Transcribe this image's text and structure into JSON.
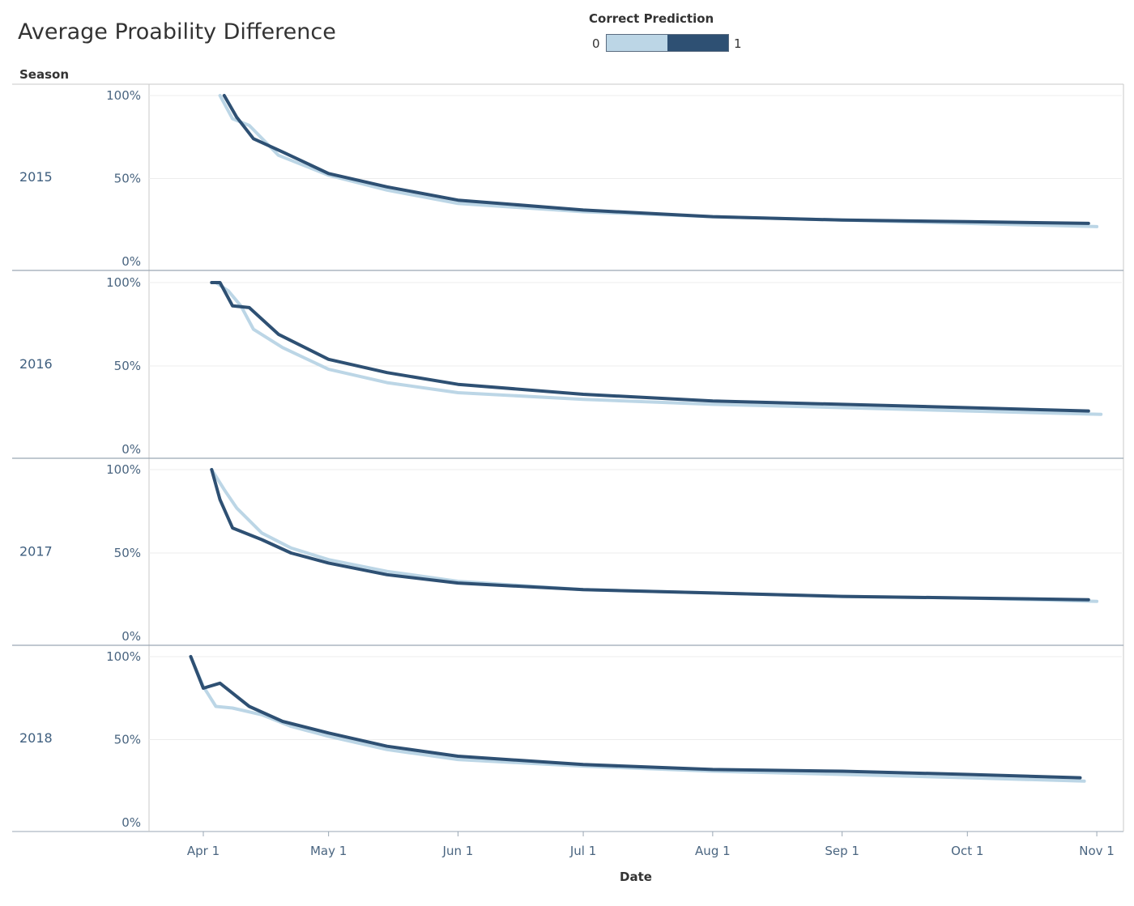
{
  "title": "Average Proability Difference",
  "legend": {
    "title": "Correct Prediction",
    "min_label": "0",
    "max_label": "1",
    "color_low": "#bcd6e6",
    "color_high": "#2e5073"
  },
  "row_header": "Season",
  "chart_data": {
    "type": "line",
    "title": "Average Proability Difference",
    "xlabel": "Date",
    "ylabel": "",
    "x_tick_labels": [
      "Apr 1",
      "May 1",
      "Jun 1",
      "Jul 1",
      "Aug 1",
      "Sep 1",
      "Oct 1",
      "Nov 1"
    ],
    "x_range": [
      "2018-03-19",
      "2018-11-07"
    ],
    "y_tick_labels": [
      "100%",
      "50%",
      "0%"
    ],
    "ylim": [
      0,
      1.0
    ],
    "grid": "horizontal",
    "legend_placement": "top-center",
    "series_colors": {
      "0": "#bcd6e6",
      "1": "#2e5073"
    },
    "panels": [
      {
        "season": "2015",
        "series": [
          {
            "name": "1",
            "points": [
              [
                "04-06",
                1.0
              ],
              [
                "04-09",
                0.87
              ],
              [
                "04-13",
                0.74
              ],
              [
                "04-20",
                0.66
              ],
              [
                "05-01",
                0.53
              ],
              [
                "05-15",
                0.45
              ],
              [
                "06-01",
                0.37
              ],
              [
                "07-01",
                0.31
              ],
              [
                "08-01",
                0.27
              ],
              [
                "09-01",
                0.25
              ],
              [
                "10-01",
                0.24
              ],
              [
                "10-30",
                0.23
              ]
            ]
          },
          {
            "name": "0",
            "points": [
              [
                "04-05",
                1.0
              ],
              [
                "04-08",
                0.86
              ],
              [
                "04-12",
                0.82
              ],
              [
                "04-19",
                0.64
              ],
              [
                "05-01",
                0.52
              ],
              [
                "05-15",
                0.43
              ],
              [
                "06-01",
                0.35
              ],
              [
                "07-01",
                0.3
              ],
              [
                "08-01",
                0.27
              ],
              [
                "09-01",
                0.25
              ],
              [
                "10-01",
                0.23
              ],
              [
                "11-01",
                0.21
              ]
            ]
          }
        ]
      },
      {
        "season": "2016",
        "series": [
          {
            "name": "1",
            "points": [
              [
                "04-03",
                1.0
              ],
              [
                "04-05",
                1.0
              ],
              [
                "04-08",
                0.86
              ],
              [
                "04-12",
                0.85
              ],
              [
                "04-19",
                0.69
              ],
              [
                "05-01",
                0.54
              ],
              [
                "05-15",
                0.46
              ],
              [
                "06-01",
                0.39
              ],
              [
                "07-01",
                0.33
              ],
              [
                "08-01",
                0.29
              ],
              [
                "09-01",
                0.27
              ],
              [
                "10-01",
                0.25
              ],
              [
                "10-30",
                0.23
              ]
            ]
          },
          {
            "name": "0",
            "points": [
              [
                "04-04",
                1.0
              ],
              [
                "04-07",
                0.95
              ],
              [
                "04-10",
                0.86
              ],
              [
                "04-13",
                0.72
              ],
              [
                "04-20",
                0.61
              ],
              [
                "05-01",
                0.48
              ],
              [
                "05-15",
                0.4
              ],
              [
                "06-01",
                0.34
              ],
              [
                "07-01",
                0.3
              ],
              [
                "08-01",
                0.27
              ],
              [
                "09-01",
                0.25
              ],
              [
                "10-01",
                0.23
              ],
              [
                "11-02",
                0.21
              ]
            ]
          }
        ]
      },
      {
        "season": "2017",
        "series": [
          {
            "name": "1",
            "points": [
              [
                "04-03",
                1.0
              ],
              [
                "04-05",
                0.82
              ],
              [
                "04-08",
                0.65
              ],
              [
                "04-15",
                0.58
              ],
              [
                "04-22",
                0.5
              ],
              [
                "05-01",
                0.44
              ],
              [
                "05-15",
                0.37
              ],
              [
                "06-01",
                0.32
              ],
              [
                "07-01",
                0.28
              ],
              [
                "08-01",
                0.26
              ],
              [
                "09-01",
                0.24
              ],
              [
                "10-01",
                0.23
              ],
              [
                "10-30",
                0.22
              ]
            ]
          },
          {
            "name": "0",
            "points": [
              [
                "04-03",
                1.0
              ],
              [
                "04-06",
                0.88
              ],
              [
                "04-09",
                0.77
              ],
              [
                "04-15",
                0.62
              ],
              [
                "04-22",
                0.53
              ],
              [
                "05-01",
                0.46
              ],
              [
                "05-15",
                0.39
              ],
              [
                "06-01",
                0.33
              ],
              [
                "07-01",
                0.28
              ],
              [
                "08-01",
                0.26
              ],
              [
                "09-01",
                0.24
              ],
              [
                "10-01",
                0.23
              ],
              [
                "11-01",
                0.21
              ]
            ]
          }
        ]
      },
      {
        "season": "2018",
        "series": [
          {
            "name": "1",
            "points": [
              [
                "03-29",
                1.0
              ],
              [
                "04-01",
                0.81
              ],
              [
                "04-05",
                0.84
              ],
              [
                "04-12",
                0.7
              ],
              [
                "04-20",
                0.61
              ],
              [
                "05-01",
                0.54
              ],
              [
                "05-15",
                0.46
              ],
              [
                "06-01",
                0.4
              ],
              [
                "07-01",
                0.35
              ],
              [
                "08-01",
                0.32
              ],
              [
                "09-01",
                0.31
              ],
              [
                "10-01",
                0.29
              ],
              [
                "10-28",
                0.27
              ]
            ]
          },
          {
            "name": "0",
            "points": [
              [
                "03-29",
                1.0
              ],
              [
                "04-01",
                0.82
              ],
              [
                "04-04",
                0.7
              ],
              [
                "04-08",
                0.69
              ],
              [
                "04-15",
                0.65
              ],
              [
                "04-22",
                0.58
              ],
              [
                "05-01",
                0.52
              ],
              [
                "05-15",
                0.44
              ],
              [
                "06-01",
                0.38
              ],
              [
                "07-01",
                0.34
              ],
              [
                "08-01",
                0.31
              ],
              [
                "09-01",
                0.29
              ],
              [
                "10-01",
                0.27
              ],
              [
                "10-29",
                0.25
              ]
            ]
          }
        ]
      }
    ]
  }
}
